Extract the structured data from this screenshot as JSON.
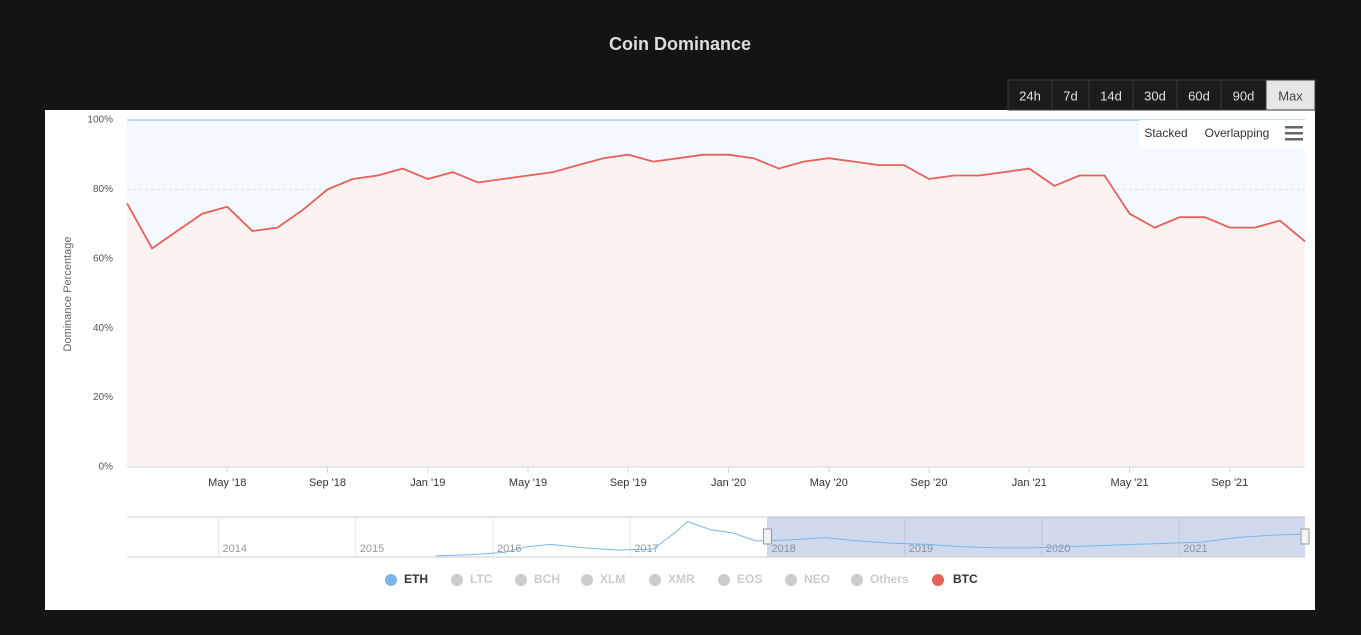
{
  "chart_data": {
    "type": "line",
    "title": "Coin Dominance",
    "y_axis_label": "Dominance Percentage",
    "range_buttons": [
      "24h",
      "7d",
      "14d",
      "30d",
      "60d",
      "90d",
      "Max"
    ],
    "selected_range": "Max",
    "mode_options": [
      "Stacked",
      "Overlapping"
    ],
    "x": [
      "2018-01",
      "2018-02",
      "2018-03",
      "2018-04",
      "2018-05",
      "2018-06",
      "2018-07",
      "2018-08",
      "2018-09",
      "2018-10",
      "2018-11",
      "2018-12",
      "2019-01",
      "2019-02",
      "2019-03",
      "2019-04",
      "2019-05",
      "2019-06",
      "2019-07",
      "2019-08",
      "2019-09",
      "2019-10",
      "2019-11",
      "2019-12",
      "2020-01",
      "2020-02",
      "2020-03",
      "2020-04",
      "2020-05",
      "2020-06",
      "2020-07",
      "2020-08",
      "2020-09",
      "2020-10",
      "2020-11",
      "2020-12",
      "2021-01",
      "2021-02",
      "2021-03",
      "2021-04",
      "2021-05",
      "2021-06",
      "2021-07",
      "2021-08",
      "2021-09",
      "2021-10",
      "2021-11",
      "2021-12"
    ],
    "series": [
      {
        "name": "BTC",
        "color": "#e8605a",
        "values": [
          76,
          63,
          68,
          73,
          75,
          68,
          69,
          74,
          80,
          83,
          84,
          86,
          83,
          85,
          82,
          83,
          84,
          85,
          87,
          89,
          90,
          88,
          89,
          90,
          90,
          89,
          86,
          88,
          89,
          88,
          87,
          87,
          83,
          84,
          84,
          85,
          86,
          81,
          84,
          84,
          73,
          69,
          72,
          72,
          69,
          69,
          71,
          65
        ]
      }
    ],
    "legend_items": [
      {
        "name": "ETH",
        "color": "#7cb5ec",
        "active": true
      },
      {
        "name": "LTC",
        "color": "#cccccc",
        "active": false
      },
      {
        "name": "BCH",
        "color": "#cccccc",
        "active": false
      },
      {
        "name": "XLM",
        "color": "#cccccc",
        "active": false
      },
      {
        "name": "XMR",
        "color": "#cccccc",
        "active": false
      },
      {
        "name": "EOS",
        "color": "#cccccc",
        "active": false
      },
      {
        "name": "NEO",
        "color": "#cccccc",
        "active": false
      },
      {
        "name": "Others",
        "color": "#cccccc",
        "active": false
      }
    ],
    "xlim": [
      "2018-01",
      "2021-12"
    ],
    "xticks": [
      {
        "value": "2018-05",
        "label": "May '18"
      },
      {
        "value": "2018-09",
        "label": "Sep '18"
      },
      {
        "value": "2019-01",
        "label": "Jan '19"
      },
      {
        "value": "2019-05",
        "label": "May '19"
      },
      {
        "value": "2019-09",
        "label": "Sep '19"
      },
      {
        "value": "2020-01",
        "label": "Jan '20"
      },
      {
        "value": "2020-05",
        "label": "May '20"
      },
      {
        "value": "2020-09",
        "label": "Sep '20"
      },
      {
        "value": "2021-01",
        "label": "Jan '21"
      },
      {
        "value": "2021-05",
        "label": "May '21"
      },
      {
        "value": "2021-09",
        "label": "Sep '21"
      }
    ],
    "ylim": [
      0,
      100
    ],
    "yticks": [
      {
        "value": 0,
        "label": "0%"
      },
      {
        "value": 20,
        "label": "20%"
      },
      {
        "value": 40,
        "label": "40%"
      },
      {
        "value": 60,
        "label": "60%"
      },
      {
        "value": 80,
        "label": "80%"
      },
      {
        "value": 100,
        "label": "100%"
      }
    ],
    "grid": true,
    "navigator": {
      "name": "ETH",
      "color": "#7cb5ec",
      "xlim": [
        "2013-05",
        "2021-12"
      ],
      "ylim": [
        0,
        35
      ],
      "selection": [
        "2018-01",
        "2021-12"
      ],
      "xticks": [
        {
          "value": "2014-01",
          "label": "2014"
        },
        {
          "value": "2015-01",
          "label": "2015"
        },
        {
          "value": "2016-01",
          "label": "2016"
        },
        {
          "value": "2017-01",
          "label": "2017"
        },
        {
          "value": "2018-01",
          "label": "2018"
        },
        {
          "value": "2019-01",
          "label": "2019"
        },
        {
          "value": "2020-01",
          "label": "2020"
        },
        {
          "value": "2021-01",
          "label": "2021"
        }
      ],
      "x": [
        "2015-08",
        "2015-11",
        "2016-02",
        "2016-04",
        "2016-06",
        "2016-09",
        "2016-12",
        "2017-03",
        "2017-05",
        "2017-06",
        "2017-08",
        "2017-10",
        "2017-12",
        "2018-03",
        "2018-06",
        "2018-09",
        "2018-12",
        "2019-03",
        "2019-06",
        "2019-09",
        "2019-12",
        "2020-03",
        "2020-06",
        "2020-09",
        "2020-12",
        "2021-03",
        "2021-06",
        "2021-09",
        "2021-12"
      ],
      "values": [
        1,
        2,
        4,
        9,
        11,
        8,
        6,
        7,
        22,
        31,
        24,
        21,
        14,
        15,
        17,
        14,
        12,
        11,
        9,
        8,
        8,
        9,
        10,
        11,
        12,
        13,
        17,
        19,
        20
      ]
    }
  }
}
